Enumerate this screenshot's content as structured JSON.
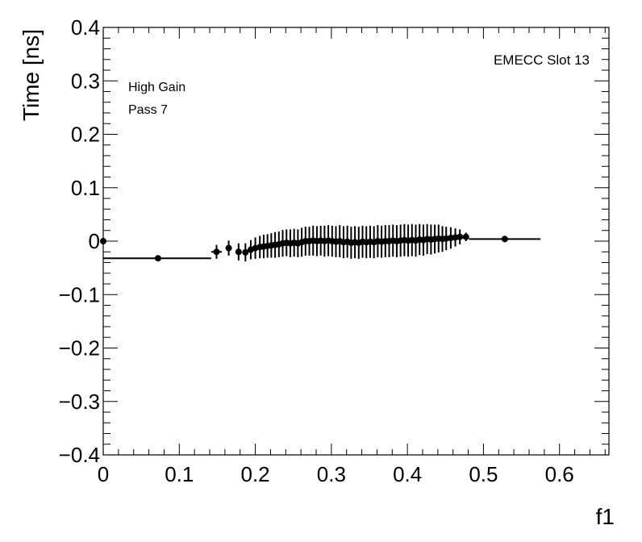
{
  "chart_data": {
    "type": "scatter",
    "title": "",
    "xlabel": "f1",
    "ylabel": "Time [ns]",
    "xlim": [
      0,
      0.665
    ],
    "ylim": [
      -0.4,
      0.4
    ],
    "x_ticks": [
      0,
      0.1,
      0.2,
      0.3,
      0.4,
      0.5,
      0.6
    ],
    "x_tick_labels": [
      "0",
      "0.1",
      "0.2",
      "0.3",
      "0.4",
      "0.5",
      "0.6"
    ],
    "y_ticks": [
      -0.4,
      -0.3,
      -0.2,
      -0.1,
      0,
      0.1,
      0.2,
      0.3,
      0.4
    ],
    "y_tick_labels": [
      "−0.4",
      "−0.3",
      "−0.2",
      "−0.1",
      "0",
      "0.1",
      "0.2",
      "0.3",
      "0.4"
    ],
    "grid": false,
    "annotations": [
      "High Gain",
      "Pass 7",
      "EMECC Slot 13"
    ],
    "marker_color": "#000000",
    "points": [
      {
        "x": 0.0,
        "y": 0.0,
        "xerr": [
          0.0,
          0.0
        ],
        "yerr": 0.003
      },
      {
        "x": 0.072,
        "y": -0.032,
        "xerr": [
          0.072,
          0.07
        ],
        "yerr": 0.005
      },
      {
        "x": 0.149,
        "y": -0.02,
        "xerr": [
          0.007,
          0.007
        ],
        "yerr": 0.013
      },
      {
        "x": 0.165,
        "y": -0.013,
        "xerr": [
          0.004,
          0.004
        ],
        "yerr": 0.014
      },
      {
        "x": 0.178,
        "y": -0.02,
        "xerr": [
          0.004,
          0.004
        ],
        "yerr": 0.016
      },
      {
        "x": 0.187,
        "y": -0.021,
        "xerr": [
          0.003,
          0.003
        ],
        "yerr": 0.017
      },
      {
        "x": 0.194,
        "y": -0.016,
        "xerr": [
          0.003,
          0.003
        ],
        "yerr": 0.018
      },
      {
        "x": 0.2,
        "y": -0.013,
        "xerr": [
          0.003,
          0.003
        ],
        "yerr": 0.02
      },
      {
        "x": 0.206,
        "y": -0.011,
        "xerr": [
          0.002,
          0.002
        ],
        "yerr": 0.021
      },
      {
        "x": 0.211,
        "y": -0.01,
        "xerr": [
          0.002,
          0.002
        ],
        "yerr": 0.022
      },
      {
        "x": 0.216,
        "y": -0.009,
        "xerr": [
          0.002,
          0.002
        ],
        "yerr": 0.022
      },
      {
        "x": 0.221,
        "y": -0.008,
        "xerr": [
          0.002,
          0.002
        ],
        "yerr": 0.023
      },
      {
        "x": 0.226,
        "y": -0.007,
        "xerr": [
          0.002,
          0.002
        ],
        "yerr": 0.024
      },
      {
        "x": 0.231,
        "y": -0.006,
        "xerr": [
          0.002,
          0.002
        ],
        "yerr": 0.024
      },
      {
        "x": 0.236,
        "y": -0.004,
        "xerr": [
          0.002,
          0.002
        ],
        "yerr": 0.025
      },
      {
        "x": 0.241,
        "y": -0.003,
        "xerr": [
          0.002,
          0.002
        ],
        "yerr": 0.025
      },
      {
        "x": 0.246,
        "y": -0.004,
        "xerr": [
          0.002,
          0.002
        ],
        "yerr": 0.026
      },
      {
        "x": 0.251,
        "y": -0.003,
        "xerr": [
          0.002,
          0.002
        ],
        "yerr": 0.026
      },
      {
        "x": 0.256,
        "y": -0.004,
        "xerr": [
          0.002,
          0.002
        ],
        "yerr": 0.026
      },
      {
        "x": 0.261,
        "y": -0.002,
        "xerr": [
          0.002,
          0.002
        ],
        "yerr": 0.027
      },
      {
        "x": 0.266,
        "y": 0.0,
        "xerr": [
          0.002,
          0.002
        ],
        "yerr": 0.027
      },
      {
        "x": 0.271,
        "y": 0.0,
        "xerr": [
          0.002,
          0.002
        ],
        "yerr": 0.027
      },
      {
        "x": 0.276,
        "y": 0.001,
        "xerr": [
          0.002,
          0.002
        ],
        "yerr": 0.028
      },
      {
        "x": 0.281,
        "y": 0.0,
        "xerr": [
          0.002,
          0.002
        ],
        "yerr": 0.028
      },
      {
        "x": 0.286,
        "y": 0.001,
        "xerr": [
          0.002,
          0.002
        ],
        "yerr": 0.028
      },
      {
        "x": 0.291,
        "y": 0.0,
        "xerr": [
          0.002,
          0.002
        ],
        "yerr": 0.029
      },
      {
        "x": 0.296,
        "y": 0.001,
        "xerr": [
          0.002,
          0.002
        ],
        "yerr": 0.029
      },
      {
        "x": 0.301,
        "y": 0.0,
        "xerr": [
          0.002,
          0.002
        ],
        "yerr": 0.029
      },
      {
        "x": 0.306,
        "y": -0.001,
        "xerr": [
          0.002,
          0.002
        ],
        "yerr": 0.029
      },
      {
        "x": 0.311,
        "y": 0.0,
        "xerr": [
          0.002,
          0.002
        ],
        "yerr": 0.03
      },
      {
        "x": 0.316,
        "y": -0.002,
        "xerr": [
          0.002,
          0.002
        ],
        "yerr": 0.03
      },
      {
        "x": 0.321,
        "y": -0.001,
        "xerr": [
          0.002,
          0.002
        ],
        "yerr": 0.03
      },
      {
        "x": 0.326,
        "y": -0.003,
        "xerr": [
          0.002,
          0.002
        ],
        "yerr": 0.03
      },
      {
        "x": 0.331,
        "y": -0.002,
        "xerr": [
          0.002,
          0.002
        ],
        "yerr": 0.03
      },
      {
        "x": 0.336,
        "y": -0.003,
        "xerr": [
          0.002,
          0.002
        ],
        "yerr": 0.03
      },
      {
        "x": 0.341,
        "y": -0.001,
        "xerr": [
          0.002,
          0.002
        ],
        "yerr": 0.03
      },
      {
        "x": 0.346,
        "y": -0.002,
        "xerr": [
          0.002,
          0.002
        ],
        "yerr": 0.03
      },
      {
        "x": 0.351,
        "y": -0.001,
        "xerr": [
          0.002,
          0.002
        ],
        "yerr": 0.03
      },
      {
        "x": 0.356,
        "y": -0.002,
        "xerr": [
          0.002,
          0.002
        ],
        "yerr": 0.03
      },
      {
        "x": 0.361,
        "y": 0.0,
        "xerr": [
          0.002,
          0.002
        ],
        "yerr": 0.03
      },
      {
        "x": 0.366,
        "y": -0.001,
        "xerr": [
          0.002,
          0.002
        ],
        "yerr": 0.03
      },
      {
        "x": 0.371,
        "y": 0.0,
        "xerr": [
          0.002,
          0.002
        ],
        "yerr": 0.03
      },
      {
        "x": 0.376,
        "y": 0.0,
        "xerr": [
          0.002,
          0.002
        ],
        "yerr": 0.03
      },
      {
        "x": 0.381,
        "y": 0.001,
        "xerr": [
          0.002,
          0.002
        ],
        "yerr": 0.03
      },
      {
        "x": 0.386,
        "y": 0.0,
        "xerr": [
          0.002,
          0.002
        ],
        "yerr": 0.03
      },
      {
        "x": 0.391,
        "y": 0.001,
        "xerr": [
          0.002,
          0.002
        ],
        "yerr": 0.03
      },
      {
        "x": 0.396,
        "y": 0.002,
        "xerr": [
          0.002,
          0.002
        ],
        "yerr": 0.03
      },
      {
        "x": 0.401,
        "y": 0.001,
        "xerr": [
          0.002,
          0.002
        ],
        "yerr": 0.03
      },
      {
        "x": 0.406,
        "y": 0.002,
        "xerr": [
          0.002,
          0.002
        ],
        "yerr": 0.03
      },
      {
        "x": 0.411,
        "y": 0.001,
        "xerr": [
          0.002,
          0.002
        ],
        "yerr": 0.03
      },
      {
        "x": 0.416,
        "y": 0.003,
        "xerr": [
          0.002,
          0.002
        ],
        "yerr": 0.029
      },
      {
        "x": 0.421,
        "y": 0.002,
        "xerr": [
          0.002,
          0.002
        ],
        "yerr": 0.029
      },
      {
        "x": 0.426,
        "y": 0.004,
        "xerr": [
          0.002,
          0.002
        ],
        "yerr": 0.028
      },
      {
        "x": 0.431,
        "y": 0.003,
        "xerr": [
          0.002,
          0.002
        ],
        "yerr": 0.028
      },
      {
        "x": 0.436,
        "y": 0.004,
        "xerr": [
          0.002,
          0.002
        ],
        "yerr": 0.027
      },
      {
        "x": 0.441,
        "y": 0.005,
        "xerr": [
          0.002,
          0.002
        ],
        "yerr": 0.026
      },
      {
        "x": 0.446,
        "y": 0.004,
        "xerr": [
          0.002,
          0.002
        ],
        "yerr": 0.024
      },
      {
        "x": 0.451,
        "y": 0.005,
        "xerr": [
          0.002,
          0.002
        ],
        "yerr": 0.022
      },
      {
        "x": 0.457,
        "y": 0.006,
        "xerr": [
          0.003,
          0.003
        ],
        "yerr": 0.02
      },
      {
        "x": 0.463,
        "y": 0.007,
        "xerr": [
          0.003,
          0.003
        ],
        "yerr": 0.017
      },
      {
        "x": 0.469,
        "y": 0.008,
        "xerr": [
          0.003,
          0.003
        ],
        "yerr": 0.014
      },
      {
        "x": 0.477,
        "y": 0.008,
        "xerr": [
          0.004,
          0.004
        ],
        "yerr": 0.008
      },
      {
        "x": 0.528,
        "y": 0.004,
        "xerr": [
          0.047,
          0.047
        ],
        "yerr": 0.006
      }
    ]
  }
}
